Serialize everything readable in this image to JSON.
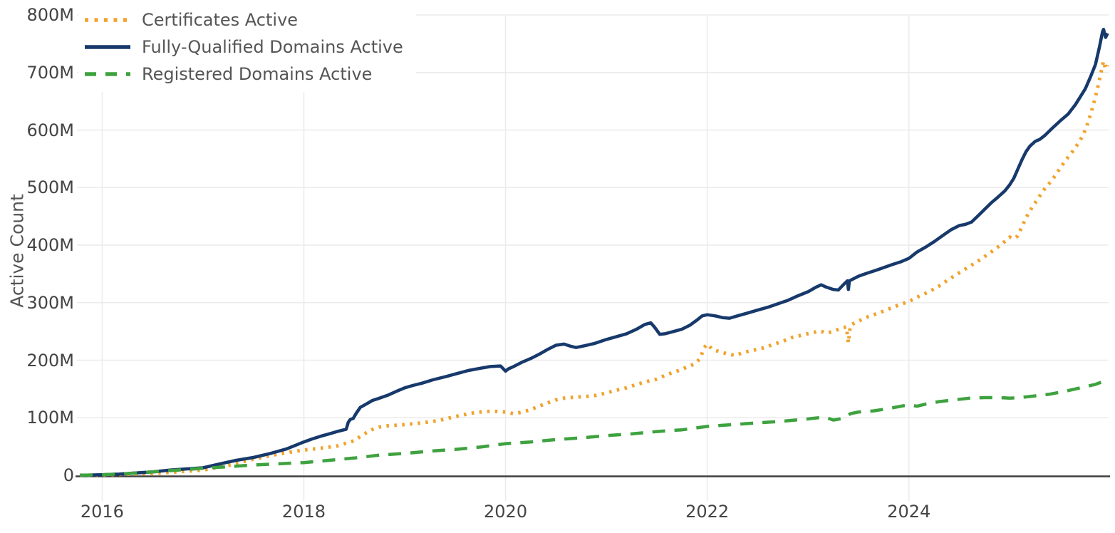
{
  "theme": {
    "background": "#ffffff",
    "grid": "#ebebeb",
    "axis_line": "#3f3f3f",
    "tick_text": "#444444",
    "legend_text": "#555555"
  },
  "y_axis": {
    "title": "Active Count",
    "ticks": [
      {
        "label": "0",
        "value": 0
      },
      {
        "label": "100M",
        "value": 100
      },
      {
        "label": "200M",
        "value": 200
      },
      {
        "label": "300M",
        "value": 300
      },
      {
        "label": "400M",
        "value": 400
      },
      {
        "label": "500M",
        "value": 500
      },
      {
        "label": "600M",
        "value": 600
      },
      {
        "label": "700M",
        "value": 700
      },
      {
        "label": "800M",
        "value": 800
      }
    ]
  },
  "x_axis": {
    "ticks": [
      {
        "label": "2016",
        "value": 2016
      },
      {
        "label": "2018",
        "value": 2018
      },
      {
        "label": "2020",
        "value": 2020
      },
      {
        "label": "2022",
        "value": 2022
      },
      {
        "label": "2024",
        "value": 2024
      }
    ]
  },
  "chart_data": {
    "type": "line",
    "title": "",
    "xlabel": "",
    "ylabel": "Active Count",
    "units": "millions",
    "grid": true,
    "legend_position": "top-left",
    "x_range": [
      2015.75,
      2025.98
    ],
    "y_range_millions": [
      0,
      800
    ],
    "series": [
      {
        "name": "Certificates Active",
        "color": "#f0a32c",
        "style": "dotted",
        "points": [
          [
            2015.78,
            0
          ],
          [
            2016.0,
            0.5
          ],
          [
            2016.25,
            2
          ],
          [
            2016.5,
            3
          ],
          [
            2016.75,
            6
          ],
          [
            2017.0,
            9
          ],
          [
            2017.25,
            17
          ],
          [
            2017.5,
            28
          ],
          [
            2017.75,
            37
          ],
          [
            2018.0,
            44
          ],
          [
            2018.17,
            47
          ],
          [
            2018.33,
            51
          ],
          [
            2018.5,
            60
          ],
          [
            2018.58,
            70
          ],
          [
            2018.67,
            79
          ],
          [
            2018.75,
            84
          ],
          [
            2018.83,
            86
          ],
          [
            2019.0,
            88
          ],
          [
            2019.17,
            91
          ],
          [
            2019.33,
            95
          ],
          [
            2019.45,
            100
          ],
          [
            2019.58,
            105
          ],
          [
            2019.7,
            109
          ],
          [
            2019.8,
            111
          ],
          [
            2019.9,
            111
          ],
          [
            2020.0,
            110
          ],
          [
            2020.08,
            107
          ],
          [
            2020.17,
            110
          ],
          [
            2020.25,
            114
          ],
          [
            2020.33,
            120
          ],
          [
            2020.42,
            126
          ],
          [
            2020.5,
            131
          ],
          [
            2020.58,
            134
          ],
          [
            2020.7,
            136
          ],
          [
            2020.8,
            137
          ],
          [
            2020.9,
            139
          ],
          [
            2021.0,
            143
          ],
          [
            2021.1,
            148
          ],
          [
            2021.2,
            152
          ],
          [
            2021.3,
            158
          ],
          [
            2021.4,
            163
          ],
          [
            2021.5,
            167
          ],
          [
            2021.6,
            175
          ],
          [
            2021.7,
            181
          ],
          [
            2021.8,
            188
          ],
          [
            2021.88,
            194
          ],
          [
            2021.93,
            203
          ],
          [
            2021.97,
            222
          ],
          [
            2022.0,
            228
          ],
          [
            2022.05,
            219
          ],
          [
            2022.12,
            215
          ],
          [
            2022.2,
            211
          ],
          [
            2022.28,
            208
          ],
          [
            2022.35,
            213
          ],
          [
            2022.45,
            217
          ],
          [
            2022.55,
            221
          ],
          [
            2022.65,
            227
          ],
          [
            2022.75,
            233
          ],
          [
            2022.85,
            240
          ],
          [
            2022.95,
            244
          ],
          [
            2023.05,
            248
          ],
          [
            2023.12,
            251
          ],
          [
            2023.18,
            247
          ],
          [
            2023.25,
            250
          ],
          [
            2023.32,
            255
          ],
          [
            2023.38,
            258
          ],
          [
            2023.4,
            230
          ],
          [
            2023.42,
            261
          ],
          [
            2023.5,
            268
          ],
          [
            2023.6,
            276
          ],
          [
            2023.7,
            282
          ],
          [
            2023.8,
            289
          ],
          [
            2023.9,
            296
          ],
          [
            2024.0,
            302
          ],
          [
            2024.1,
            311
          ],
          [
            2024.2,
            319
          ],
          [
            2024.3,
            329
          ],
          [
            2024.4,
            341
          ],
          [
            2024.5,
            352
          ],
          [
            2024.6,
            363
          ],
          [
            2024.7,
            374
          ],
          [
            2024.8,
            386
          ],
          [
            2024.9,
            399
          ],
          [
            2024.97,
            409
          ],
          [
            2025.0,
            414
          ],
          [
            2025.04,
            411
          ],
          [
            2025.08,
            416
          ],
          [
            2025.12,
            432
          ],
          [
            2025.17,
            450
          ],
          [
            2025.22,
            465
          ],
          [
            2025.28,
            481
          ],
          [
            2025.35,
            499
          ],
          [
            2025.42,
            513
          ],
          [
            2025.5,
            534
          ],
          [
            2025.56,
            549
          ],
          [
            2025.62,
            562
          ],
          [
            2025.68,
            577
          ],
          [
            2025.73,
            592
          ],
          [
            2025.78,
            615
          ],
          [
            2025.83,
            645
          ],
          [
            2025.87,
            672
          ],
          [
            2025.9,
            696
          ],
          [
            2025.93,
            720
          ],
          [
            2025.95,
            706
          ],
          [
            2025.97,
            713
          ]
        ]
      },
      {
        "name": "Fully-Qualified Domains Active",
        "color": "#17396b",
        "style": "solid",
        "points": [
          [
            2015.78,
            0
          ],
          [
            2016.0,
            1
          ],
          [
            2016.17,
            2
          ],
          [
            2016.33,
            4
          ],
          [
            2016.5,
            6
          ],
          [
            2016.67,
            9
          ],
          [
            2016.83,
            11
          ],
          [
            2017.0,
            13
          ],
          [
            2017.17,
            20
          ],
          [
            2017.33,
            26
          ],
          [
            2017.5,
            31
          ],
          [
            2017.67,
            38
          ],
          [
            2017.83,
            46
          ],
          [
            2018.0,
            58
          ],
          [
            2018.08,
            63
          ],
          [
            2018.17,
            68
          ],
          [
            2018.25,
            72
          ],
          [
            2018.33,
            76
          ],
          [
            2018.42,
            80
          ],
          [
            2018.44,
            92
          ],
          [
            2018.46,
            97
          ],
          [
            2018.49,
            99
          ],
          [
            2018.52,
            108
          ],
          [
            2018.56,
            118
          ],
          [
            2018.62,
            124
          ],
          [
            2018.68,
            130
          ],
          [
            2018.75,
            134
          ],
          [
            2018.83,
            139
          ],
          [
            2018.92,
            146
          ],
          [
            2019.0,
            152
          ],
          [
            2019.08,
            156
          ],
          [
            2019.17,
            160
          ],
          [
            2019.28,
            166
          ],
          [
            2019.42,
            172
          ],
          [
            2019.5,
            176
          ],
          [
            2019.63,
            182
          ],
          [
            2019.75,
            186
          ],
          [
            2019.85,
            189
          ],
          [
            2019.95,
            190
          ],
          [
            2020.0,
            181
          ],
          [
            2020.03,
            185
          ],
          [
            2020.08,
            189
          ],
          [
            2020.17,
            197
          ],
          [
            2020.25,
            203
          ],
          [
            2020.33,
            210
          ],
          [
            2020.42,
            219
          ],
          [
            2020.5,
            226
          ],
          [
            2020.58,
            228
          ],
          [
            2020.65,
            224
          ],
          [
            2020.7,
            222
          ],
          [
            2020.78,
            225
          ],
          [
            2020.88,
            229
          ],
          [
            2021.0,
            236
          ],
          [
            2021.1,
            241
          ],
          [
            2021.2,
            246
          ],
          [
            2021.3,
            254
          ],
          [
            2021.38,
            262
          ],
          [
            2021.44,
            265
          ],
          [
            2021.48,
            257
          ],
          [
            2021.53,
            245
          ],
          [
            2021.58,
            246
          ],
          [
            2021.67,
            250
          ],
          [
            2021.75,
            254
          ],
          [
            2021.83,
            261
          ],
          [
            2021.9,
            270
          ],
          [
            2021.95,
            277
          ],
          [
            2022.0,
            279
          ],
          [
            2022.08,
            277
          ],
          [
            2022.15,
            274
          ],
          [
            2022.22,
            273
          ],
          [
            2022.3,
            277
          ],
          [
            2022.4,
            282
          ],
          [
            2022.5,
            287
          ],
          [
            2022.6,
            292
          ],
          [
            2022.7,
            298
          ],
          [
            2022.8,
            304
          ],
          [
            2022.9,
            312
          ],
          [
            2023.0,
            319
          ],
          [
            2023.08,
            327
          ],
          [
            2023.13,
            331
          ],
          [
            2023.18,
            327
          ],
          [
            2023.25,
            323
          ],
          [
            2023.3,
            322
          ],
          [
            2023.36,
            333
          ],
          [
            2023.39,
            338
          ],
          [
            2023.4,
            323
          ],
          [
            2023.41,
            338
          ],
          [
            2023.5,
            346
          ],
          [
            2023.58,
            351
          ],
          [
            2023.67,
            356
          ],
          [
            2023.75,
            361
          ],
          [
            2023.83,
            366
          ],
          [
            2023.92,
            371
          ],
          [
            2024.0,
            377
          ],
          [
            2024.08,
            388
          ],
          [
            2024.17,
            397
          ],
          [
            2024.25,
            406
          ],
          [
            2024.33,
            416
          ],
          [
            2024.42,
            427
          ],
          [
            2024.5,
            434
          ],
          [
            2024.56,
            436
          ],
          [
            2024.62,
            440
          ],
          [
            2024.68,
            450
          ],
          [
            2024.75,
            462
          ],
          [
            2024.82,
            474
          ],
          [
            2024.88,
            483
          ],
          [
            2024.95,
            494
          ],
          [
            2025.0,
            505
          ],
          [
            2025.04,
            516
          ],
          [
            2025.08,
            532
          ],
          [
            2025.12,
            548
          ],
          [
            2025.16,
            562
          ],
          [
            2025.2,
            572
          ],
          [
            2025.25,
            580
          ],
          [
            2025.3,
            584
          ],
          [
            2025.35,
            591
          ],
          [
            2025.42,
            603
          ],
          [
            2025.5,
            616
          ],
          [
            2025.58,
            628
          ],
          [
            2025.65,
            644
          ],
          [
            2025.7,
            658
          ],
          [
            2025.75,
            672
          ],
          [
            2025.8,
            692
          ],
          [
            2025.85,
            714
          ],
          [
            2025.89,
            745
          ],
          [
            2025.92,
            771
          ],
          [
            2025.93,
            775
          ],
          [
            2025.95,
            761
          ],
          [
            2025.97,
            768
          ]
        ]
      },
      {
        "name": "Registered Domains Active",
        "color": "#3ea23f",
        "style": "dashed",
        "points": [
          [
            2015.78,
            0
          ],
          [
            2016.0,
            1
          ],
          [
            2016.25,
            3
          ],
          [
            2016.5,
            6
          ],
          [
            2016.75,
            9
          ],
          [
            2017.0,
            12
          ],
          [
            2017.25,
            15
          ],
          [
            2017.5,
            18
          ],
          [
            2017.75,
            20
          ],
          [
            2018.0,
            22
          ],
          [
            2018.25,
            26
          ],
          [
            2018.5,
            30
          ],
          [
            2018.75,
            35
          ],
          [
            2019.0,
            38
          ],
          [
            2019.25,
            42
          ],
          [
            2019.5,
            45
          ],
          [
            2019.75,
            49
          ],
          [
            2020.0,
            55
          ],
          [
            2020.25,
            58
          ],
          [
            2020.5,
            62
          ],
          [
            2020.75,
            65
          ],
          [
            2021.0,
            69
          ],
          [
            2021.25,
            72
          ],
          [
            2021.5,
            76
          ],
          [
            2021.75,
            79
          ],
          [
            2022.0,
            85
          ],
          [
            2022.25,
            88
          ],
          [
            2022.5,
            91
          ],
          [
            2022.75,
            94
          ],
          [
            2023.0,
            98
          ],
          [
            2023.1,
            100
          ],
          [
            2023.17,
            101
          ],
          [
            2023.25,
            96
          ],
          [
            2023.35,
            99
          ],
          [
            2023.42,
            107
          ],
          [
            2023.5,
            110
          ],
          [
            2023.65,
            112
          ],
          [
            2023.8,
            116
          ],
          [
            2023.95,
            121
          ],
          [
            2024.02,
            122
          ],
          [
            2024.08,
            120
          ],
          [
            2024.17,
            124
          ],
          [
            2024.3,
            128
          ],
          [
            2024.45,
            131
          ],
          [
            2024.6,
            134
          ],
          [
            2024.75,
            135
          ],
          [
            2024.9,
            135
          ],
          [
            2025.0,
            134
          ],
          [
            2025.1,
            135
          ],
          [
            2025.25,
            138
          ],
          [
            2025.4,
            141
          ],
          [
            2025.55,
            146
          ],
          [
            2025.7,
            152
          ],
          [
            2025.85,
            158
          ],
          [
            2025.97,
            166
          ]
        ]
      }
    ]
  }
}
